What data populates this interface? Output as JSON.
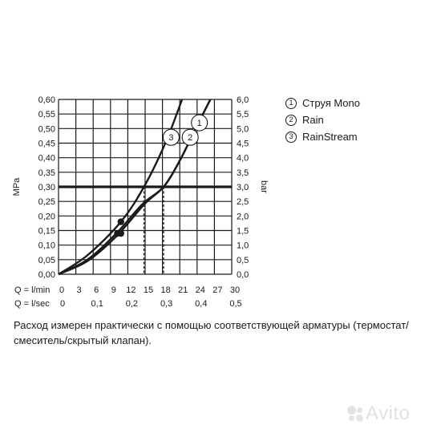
{
  "chart_data": {
    "type": "line",
    "y_left": {
      "unit": "MPa",
      "ticks": [
        "0,00",
        "0,05",
        "0,10",
        "0,15",
        "0,20",
        "0,25",
        "0,30",
        "0,35",
        "0,40",
        "0,45",
        "0,50",
        "0,55",
        "0,60"
      ],
      "range": [
        0,
        0.6
      ]
    },
    "y_right": {
      "unit": "bar",
      "ticks": [
        "0,0",
        "0,5",
        "1,0",
        "1,5",
        "2,0",
        "2,5",
        "3,0",
        "3,5",
        "4,0",
        "4,5",
        "5,0",
        "5,5",
        "6,0"
      ],
      "range": [
        0,
        6
      ]
    },
    "x_lmin": {
      "label": "Q = l/min",
      "ticks": [
        "0",
        "3",
        "6",
        "9",
        "12",
        "15",
        "18",
        "21",
        "24",
        "27",
        "30"
      ],
      "range": [
        0,
        30
      ]
    },
    "x_lsec": {
      "label": "Q = l/sec",
      "ticks": [
        "0",
        "0,1",
        "0,2",
        "0,3",
        "0,4",
        "0,5"
      ],
      "values": [
        0,
        0.1,
        0.2,
        0.3,
        0.4,
        0.5
      ]
    },
    "grid": true,
    "reference_line": {
      "y": 0.3
    },
    "series": [
      {
        "id": 1,
        "name": "Струя Mono",
        "x": [
          0,
          5,
          10,
          15,
          18.2,
          21,
          24,
          26.3
        ],
        "y": [
          0,
          0.045,
          0.13,
          0.243,
          0.3,
          0.39,
          0.51,
          0.6
        ]
      },
      {
        "id": 2,
        "name": "Rain",
        "x": [
          0,
          5,
          10,
          14.5,
          18.2,
          21,
          24,
          26.3
        ],
        "y": [
          0,
          0.05,
          0.14,
          0.24,
          0.3,
          0.39,
          0.51,
          0.6
        ]
      },
      {
        "id": 3,
        "name": "RainStream",
        "x": [
          0,
          5,
          10.8,
          14.8,
          18.5,
          21.4
        ],
        "y": [
          0,
          0.065,
          0.18,
          0.3,
          0.45,
          0.6
        ]
      }
    ],
    "markers": [
      {
        "x": 10.8,
        "y": 0.18
      },
      {
        "x": 10.2,
        "y": 0.14
      },
      {
        "x": 10.8,
        "y": 0.14
      }
    ],
    "dropdowns": [
      {
        "x": 14.8,
        "y": 0.3
      },
      {
        "x": 18.2,
        "y": 0.3
      }
    ],
    "curve_tags": [
      {
        "id": "1",
        "x": 24.4,
        "y": 0.52
      },
      {
        "id": "2",
        "x": 22.8,
        "y": 0.47
      },
      {
        "id": "3",
        "x": 19.5,
        "y": 0.47
      }
    ]
  },
  "legend": [
    {
      "num": "1",
      "label": "Струя Mono"
    },
    {
      "num": "2",
      "label": "Rain"
    },
    {
      "num": "3",
      "label": "RainStream"
    }
  ],
  "note": "Расход измерен практически с помощью соответствующей арматуры (термостат/смеситель/скрытый клапан).",
  "watermark": "Avito"
}
